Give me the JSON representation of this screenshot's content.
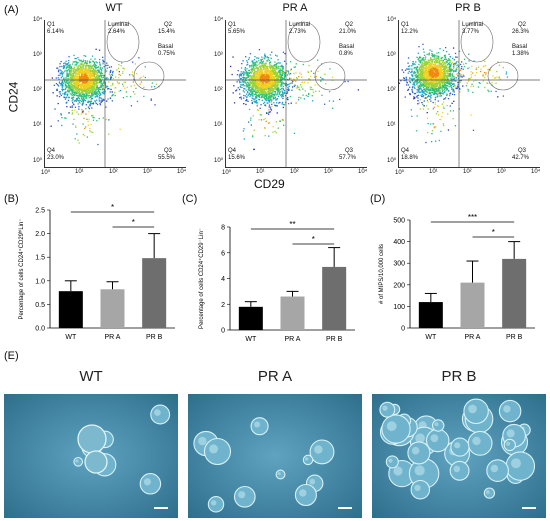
{
  "panel_labels": {
    "a": "(A)",
    "b": "(B)",
    "c": "(C)",
    "d": "(D)",
    "e": "(E)"
  },
  "flow": {
    "y_axis_label": "CD24",
    "x_axis_label": "CD29",
    "x_ticks": [
      "10⁰",
      "10¹",
      "10²",
      "10³",
      "10⁴"
    ],
    "y_ticks": [
      "10⁴",
      "10³",
      "10²",
      "10¹",
      "10⁰"
    ],
    "plots": [
      {
        "title": "WT",
        "q1": "Q1",
        "q1_val": "6.14%",
        "q2": "Q2",
        "q2_val": "15.4%",
        "q3": "Q3",
        "q3_val": "55.5%",
        "q4": "Q4",
        "q4_val": "23.0%",
        "luminal": "Luminal",
        "luminal_val": "2.64%",
        "basal": "Basal",
        "basal_val": "0.75%"
      },
      {
        "title": "PR A",
        "q1": "Q1",
        "q1_val": "5.65%",
        "q2": "Q2",
        "q2_val": "21.0%",
        "q3": "Q3",
        "q3_val": "57.7%",
        "q4": "Q4",
        "q4_val": "15.6%",
        "luminal": "Luminal",
        "luminal_val": "2.73%",
        "basal": "Basal",
        "basal_val": "0.8%"
      },
      {
        "title": "PR B",
        "q1": "Q1",
        "q1_val": "12.2%",
        "q2": "Q2",
        "q2_val": "26.3%",
        "q3": "Q3",
        "q3_val": "42.7%",
        "q4": "Q4",
        "q4_val": "18.8%",
        "luminal": "Luminal",
        "luminal_val": "3.77%",
        "basal": "Basal",
        "basal_val": "1.38%"
      }
    ]
  },
  "chart_data": [
    {
      "type": "bar",
      "ylabel": "Percentage of cells CD24⁺CD29ʰⁱLin⁻",
      "categories": [
        "WT",
        "PR A",
        "PR B"
      ],
      "values": [
        0.78,
        0.82,
        1.48
      ],
      "errors": [
        0.22,
        0.16,
        0.52
      ],
      "colors": [
        "#000000",
        "#a6a6a6",
        "#6e6e6e"
      ],
      "ylim": [
        0,
        2.5
      ],
      "yticks": [
        "0.0",
        "0.5",
        "1.0",
        "1.5",
        "2.0",
        "2.5"
      ],
      "significance": [
        {
          "from": 0,
          "to": 2,
          "label": "*"
        },
        {
          "from": 1,
          "to": 2,
          "label": "*"
        }
      ]
    },
    {
      "type": "bar",
      "ylabel": "Percentage of cells CD24⁺CD29⁻Lin⁻",
      "categories": [
        "WT",
        "PR A",
        "PR B"
      ],
      "values": [
        1.8,
        2.6,
        4.9
      ],
      "errors": [
        0.4,
        0.4,
        1.5
      ],
      "colors": [
        "#000000",
        "#a6a6a6",
        "#6e6e6e"
      ],
      "ylim": [
        0,
        8
      ],
      "yticks": [
        "0",
        "2",
        "4",
        "6",
        "8"
      ],
      "significance": [
        {
          "from": 0,
          "to": 2,
          "label": "**"
        },
        {
          "from": 1,
          "to": 2,
          "label": "*"
        }
      ]
    },
    {
      "type": "bar",
      "ylabel": "# of MIPS/10,000 cells",
      "categories": [
        "WT",
        "PR A",
        "PR B"
      ],
      "values": [
        120,
        210,
        320
      ],
      "errors": [
        40,
        100,
        80
      ],
      "colors": [
        "#000000",
        "#a6a6a6",
        "#6e6e6e"
      ],
      "ylim": [
        0,
        500
      ],
      "yticks": [
        "0",
        "100",
        "200",
        "300",
        "400",
        "500"
      ],
      "significance": [
        {
          "from": 0,
          "to": 2,
          "label": "***"
        },
        {
          "from": 1,
          "to": 2,
          "label": "*"
        }
      ]
    }
  ],
  "micrographs": [
    {
      "title": "WT"
    },
    {
      "title": "PR A"
    },
    {
      "title": "PR B"
    }
  ],
  "colors": {
    "bar_wt": "#000000",
    "bar_pra": "#a6a6a6",
    "bar_prb": "#6e6e6e",
    "micro_bg": "#4a8aa8"
  }
}
